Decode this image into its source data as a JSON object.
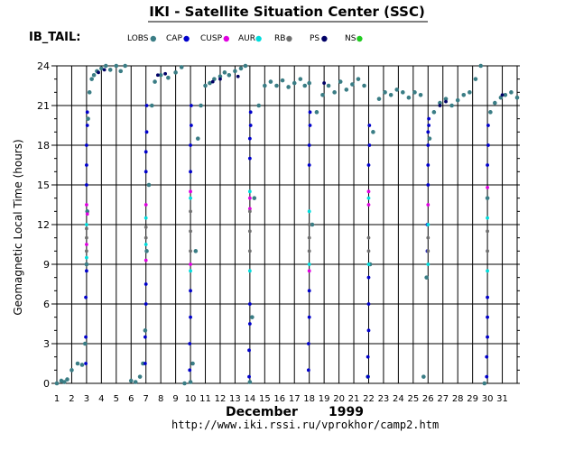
{
  "header": {
    "title": "IKI - Satellite Situation Center (SSC)",
    "satellite": "IB_TAIL:"
  },
  "legend": [
    {
      "label": "LOBS",
      "color": "#3a7d85"
    },
    {
      "label": "CAP",
      "color": "#0000cc"
    },
    {
      "label": "CUSP",
      "color": "#e000e0"
    },
    {
      "label": "AUR",
      "color": "#00dddd"
    },
    {
      "label": "RB",
      "color": "#707070"
    },
    {
      "label": "PS",
      "color": "#000066"
    },
    {
      "label": "NS",
      "color": "#22cc22"
    }
  ],
  "footer": {
    "month": "December",
    "year": "1999",
    "url": "http://www.iki.rssi.ru/vprokhor/camp2.htm"
  },
  "chart_data": {
    "type": "scatter",
    "title": "IKI - Satellite Situation Center (SSC)",
    "xlabel": "December 1999",
    "ylabel": "Geomagnetic Local Time (hours)",
    "xlim": [
      1,
      32
    ],
    "ylim": [
      0,
      24
    ],
    "xticks": [
      1,
      2,
      3,
      4,
      5,
      6,
      7,
      8,
      9,
      10,
      11,
      12,
      13,
      14,
      15,
      16,
      17,
      18,
      19,
      20,
      21,
      22,
      23,
      24,
      25,
      26,
      27,
      28,
      29,
      30,
      31
    ],
    "yticks": [
      0,
      3,
      6,
      9,
      12,
      15,
      18,
      21,
      24
    ],
    "ytick_labels": [
      "0",
      "3",
      "6",
      "9",
      "12",
      "15",
      "18",
      "21",
      "24"
    ],
    "grid": true,
    "series": [
      {
        "name": "LOBS",
        "color": "#3a7d85",
        "x": [
          1.0,
          1.3,
          1.5,
          1.7,
          2.0,
          2.4,
          2.7,
          2.9,
          3.0,
          3.05,
          3.1,
          3.2,
          3.35,
          3.5,
          3.7,
          4.0,
          4.3,
          4.6,
          5.0,
          5.3,
          5.6,
          6.0,
          6.3,
          6.6,
          6.8,
          6.95,
          7.05,
          7.2,
          7.4,
          7.6,
          8.0,
          8.5,
          9.0,
          9.4,
          9.6,
          10.0,
          10.15,
          10.35,
          10.5,
          10.7,
          11.0,
          11.3,
          11.6,
          12.0,
          12.3,
          12.6,
          13.0,
          13.4,
          13.7,
          14.0,
          14.15,
          14.3,
          14.6,
          15.0,
          15.4,
          15.8,
          16.2,
          16.6,
          17.0,
          17.4,
          17.7,
          18.0,
          18.2,
          18.5,
          18.9,
          19.3,
          19.7,
          20.1,
          20.5,
          20.9,
          21.3,
          21.7,
          21.95,
          22.1,
          22.3,
          22.7,
          23.1,
          23.5,
          23.9,
          24.3,
          24.7,
          25.1,
          25.5,
          25.7,
          25.9,
          26.1,
          26.4,
          26.8,
          27.2,
          27.6,
          28.0,
          28.4,
          28.8,
          29.2,
          29.55,
          29.8,
          30.0,
          30.2,
          30.5,
          30.9,
          31.2,
          31.6,
          32.0
        ],
        "y": [
          0.0,
          0.2,
          0.1,
          0.3,
          1.0,
          1.5,
          1.4,
          3.0,
          9.0,
          13.0,
          20.0,
          22.0,
          23.0,
          23.3,
          23.6,
          23.8,
          24.0,
          23.7,
          24.0,
          23.6,
          24.0,
          0.2,
          0.1,
          0.5,
          1.5,
          4.0,
          10.0,
          15.0,
          21.0,
          22.8,
          23.3,
          23.1,
          23.5,
          23.9,
          0.0,
          0.1,
          1.5,
          10.0,
          18.5,
          21.0,
          22.5,
          22.7,
          23.0,
          23.2,
          23.5,
          23.3,
          23.6,
          23.8,
          24.0,
          0.1,
          5.0,
          14.0,
          21.0,
          22.5,
          22.8,
          22.5,
          22.9,
          22.4,
          22.7,
          23.0,
          22.5,
          22.7,
          12.0,
          20.5,
          21.8,
          22.5,
          22.0,
          22.8,
          22.2,
          22.6,
          23.0,
          22.5,
          0.5,
          9.0,
          19.0,
          21.5,
          22.0,
          21.8,
          22.2,
          22.0,
          21.6,
          22.0,
          21.8,
          0.5,
          8.0,
          18.5,
          20.5,
          21.2,
          21.5,
          21.0,
          21.4,
          21.8,
          22.0,
          23.0,
          24.0,
          0.0,
          14.0,
          20.5,
          21.2,
          21.6,
          21.8,
          22.0,
          21.6
        ]
      },
      {
        "name": "CAP",
        "color": "#0000cc",
        "x": [
          2.95,
          2.95,
          2.95,
          3.0,
          3.0,
          3.0,
          3.0,
          3.05,
          3.05,
          6.95,
          6.95,
          7.0,
          7.0,
          7.0,
          7.0,
          7.05,
          7.05,
          9.95,
          9.95,
          10.0,
          10.0,
          10.0,
          10.0,
          10.05,
          10.05,
          13.95,
          13.95,
          14.0,
          14.0,
          14.0,
          14.0,
          14.05,
          14.05,
          17.95,
          17.95,
          18.0,
          18.0,
          18.0,
          18.0,
          18.05,
          18.05,
          21.95,
          21.95,
          22.0,
          22.0,
          22.0,
          22.0,
          22.05,
          22.05,
          25.95,
          25.95,
          26.0,
          26.0,
          26.0,
          26.0,
          26.05,
          26.05,
          29.95,
          29.95,
          30.0,
          30.0,
          30.0,
          30.0,
          30.05,
          30.05
        ],
        "y": [
          1.5,
          3.5,
          6.5,
          8.5,
          15.0,
          16.5,
          18.0,
          19.5,
          20.5,
          1.5,
          3.5,
          6.0,
          7.5,
          16.0,
          17.5,
          19.0,
          21.0,
          1.0,
          3.0,
          5.0,
          7.0,
          16.0,
          18.0,
          19.5,
          21.0,
          0.5,
          2.5,
          4.5,
          6.0,
          17.0,
          18.5,
          19.5,
          20.5,
          1.0,
          3.0,
          5.0,
          7.0,
          16.5,
          18.0,
          19.5,
          20.5,
          0.5,
          2.0,
          4.0,
          6.0,
          8.0,
          16.5,
          18.0,
          19.5,
          10.0,
          12.0,
          15.0,
          16.5,
          18.0,
          19.0,
          20.0,
          19.5,
          0.5,
          2.0,
          3.5,
          5.0,
          6.5,
          16.5,
          18.0,
          19.5
        ]
      },
      {
        "name": "CUSP",
        "color": "#e000e0",
        "x": [
          3.0,
          3.0,
          3.05,
          7.0,
          7.0,
          10.0,
          10.0,
          14.0,
          14.0,
          18.0,
          22.0,
          22.0,
          26.0,
          30.0
        ],
        "y": [
          10.5,
          13.5,
          12.8,
          9.3,
          13.5,
          14.5,
          9.0,
          14.0,
          13.2,
          8.5,
          13.5,
          14.5,
          13.5,
          14.8
        ]
      },
      {
        "name": "AUR",
        "color": "#00dddd",
        "x": [
          3.0,
          3.0,
          7.0,
          7.0,
          10.0,
          10.0,
          14.0,
          14.0,
          18.0,
          18.0,
          22.0,
          22.0,
          26.0,
          26.0,
          30.0,
          30.0
        ],
        "y": [
          12.0,
          9.5,
          10.5,
          12.5,
          8.5,
          14.0,
          8.5,
          14.5,
          9.0,
          13.0,
          9.0,
          14.0,
          9.0,
          12.0,
          8.5,
          12.5
        ]
      },
      {
        "name": "RB",
        "color": "#707070",
        "x": [
          3.0,
          3.0,
          3.0,
          7.0,
          7.0,
          10.0,
          10.0,
          10.0,
          14.0,
          14.0,
          14.0,
          18.0,
          18.0,
          18.0,
          22.0,
          22.0,
          26.0,
          26.0,
          30.0,
          30.0
        ],
        "y": [
          10.0,
          11.0,
          11.7,
          11.0,
          11.8,
          10.0,
          11.5,
          13.0,
          10.0,
          11.5,
          13.0,
          10.0,
          11.0,
          12.0,
          10.0,
          11.0,
          10.0,
          11.0,
          10.0,
          11.5
        ]
      },
      {
        "name": "PS",
        "color": "#000066",
        "x": [
          3.8,
          4.2,
          7.8,
          8.3,
          11.5,
          12.0,
          13.2,
          19.0,
          26.8,
          27.2,
          31.0
        ],
        "y": [
          23.5,
          23.7,
          23.3,
          23.4,
          22.8,
          23.0,
          23.2,
          22.7,
          21.0,
          21.3,
          21.8
        ]
      },
      {
        "name": "NS",
        "color": "#22cc22",
        "x": [],
        "y": []
      }
    ]
  }
}
